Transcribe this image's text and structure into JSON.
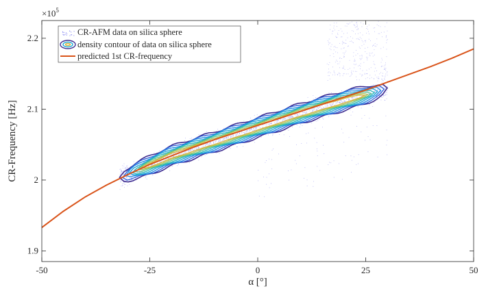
{
  "chart_data": {
    "type": "scatter",
    "xlabel": "α [°]",
    "ylabel": "CR-Frequency [Hz]",
    "y_exponent_label": "×10",
    "y_exponent_power": "5",
    "xlim": [
      -50,
      50
    ],
    "ylim": [
      1.885,
      2.225
    ],
    "x_ticks": [
      -50,
      -25,
      0,
      25,
      50
    ],
    "x_tick_labels": [
      "-50",
      "-25",
      "0",
      "25",
      "50"
    ],
    "y_ticks": [
      1.9,
      2.0,
      2.1,
      2.2
    ],
    "y_tick_labels": [
      "1.9",
      "2",
      "2.1",
      "2.2"
    ],
    "grid": false,
    "legend_position": "top-left",
    "legend": [
      {
        "label": "CR-AFM data on silica sphere",
        "kind": "points",
        "color": "#7b7bf0"
      },
      {
        "label": "density contour of data on silica sphere",
        "kind": "contour",
        "color": "#3a2f9a"
      },
      {
        "label": "predicted 1st CR-frequency",
        "kind": "line",
        "color": "#d95319"
      }
    ],
    "series": [
      {
        "name": "predicted 1st CR-frequency",
        "type": "line",
        "color": "#d95319",
        "x": [
          -50,
          -45,
          -40,
          -35,
          -30,
          -25,
          -20,
          -15,
          -10,
          -5,
          0,
          5,
          10,
          15,
          20,
          25,
          30,
          35,
          40,
          45,
          50
        ],
        "y": [
          1.933,
          1.956,
          1.976,
          1.993,
          2.008,
          2.022,
          2.034,
          2.046,
          2.057,
          2.067,
          2.077,
          2.087,
          2.097,
          2.107,
          2.117,
          2.127,
          2.138,
          2.149,
          2.16,
          2.172,
          2.185
        ]
      },
      {
        "name": "CR-AFM data on silica sphere",
        "type": "density-scatter",
        "color": "#7b7bf0",
        "x_range": [
          -32,
          30
        ],
        "trend": {
          "x": [
            -30,
            -20,
            -10,
            0,
            10,
            20,
            28
          ],
          "y": [
            2.008,
            2.034,
            2.054,
            2.074,
            2.094,
            2.112,
            2.125
          ]
        },
        "spread": 0.013
      }
    ],
    "contours": {
      "colors": [
        "#3d2b8f",
        "#2b5fd9",
        "#1f8be0",
        "#1ea8d6",
        "#23b9b6",
        "#5fc48e",
        "#a8c456",
        "#d7b43a"
      ],
      "center": {
        "x": [
          -30,
          -20,
          -10,
          0,
          10,
          20,
          28
        ],
        "y": [
          2.008,
          2.034,
          2.054,
          2.074,
          2.094,
          2.112,
          2.125
        ]
      },
      "half_width": 0.012
    }
  }
}
